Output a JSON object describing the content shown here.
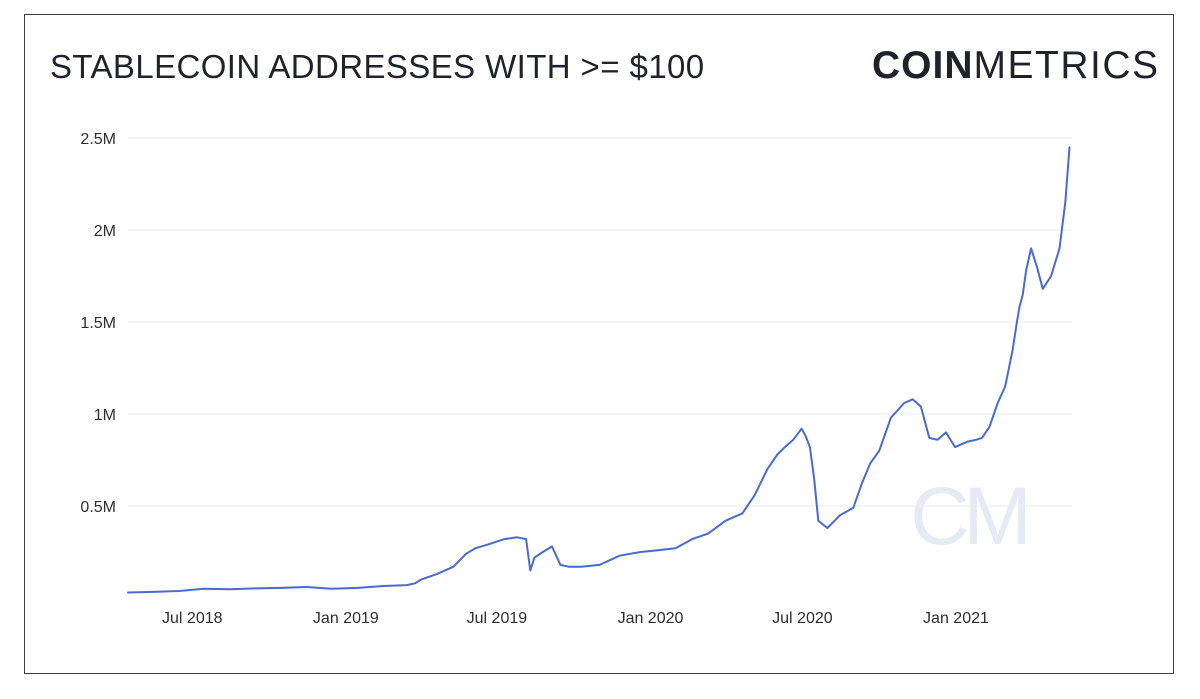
{
  "title": "STABLECOIN ADDRESSES WITH >= $100",
  "logo": {
    "bold": "COIN",
    "light": "METRICS"
  },
  "watermark": "CM",
  "colors": {
    "line": "#4a6ad0",
    "grid": "#ececec",
    "watermark": "#e6eaf5"
  },
  "chart_data": {
    "type": "line",
    "title": "STABLECOIN ADDRESSES WITH >= $100",
    "xlabel": "",
    "ylabel": "",
    "grid": true,
    "legend": "none",
    "xlim": [
      "2018-04-15",
      "2021-05-20"
    ],
    "ylim": [
      0,
      2500000
    ],
    "yticks": [
      {
        "value": 500000,
        "label": "0.5M"
      },
      {
        "value": 1000000,
        "label": "1M"
      },
      {
        "value": 1500000,
        "label": "1.5M"
      },
      {
        "value": 2000000,
        "label": "2M"
      },
      {
        "value": 2500000,
        "label": "2.5M"
      }
    ],
    "xticks": [
      {
        "value": "2018-07-01",
        "label": "Jul 2018"
      },
      {
        "value": "2019-01-01",
        "label": "Jan 2019"
      },
      {
        "value": "2019-07-01",
        "label": "Jul 2019"
      },
      {
        "value": "2020-01-01",
        "label": "Jan 2020"
      },
      {
        "value": "2020-07-01",
        "label": "Jul 2020"
      },
      {
        "value": "2021-01-01",
        "label": "Jan 2021"
      }
    ],
    "series": [
      {
        "x": [
          "2018-04-15",
          "2018-05-15",
          "2018-06-15",
          "2018-07-15",
          "2018-08-15",
          "2018-09-15",
          "2018-10-15",
          "2018-11-15",
          "2018-12-15",
          "2019-01-15",
          "2019-02-15",
          "2019-03-15",
          "2019-03-25",
          "2019-04-01",
          "2019-04-20",
          "2019-05-10",
          "2019-05-25",
          "2019-06-05",
          "2019-06-20",
          "2019-07-10",
          "2019-07-25",
          "2019-08-05",
          "2019-08-10",
          "2019-08-15",
          "2019-08-25",
          "2019-09-05",
          "2019-09-15",
          "2019-09-25",
          "2019-10-10",
          "2019-11-01",
          "2019-11-25",
          "2019-12-20",
          "2020-01-10",
          "2020-01-31",
          "2020-02-20",
          "2020-03-10",
          "2020-03-31",
          "2020-04-20",
          "2020-05-05",
          "2020-05-20",
          "2020-06-01",
          "2020-06-10",
          "2020-06-20",
          "2020-06-30",
          "2020-07-05",
          "2020-07-10",
          "2020-07-15",
          "2020-07-20",
          "2020-07-31",
          "2020-08-15",
          "2020-08-31",
          "2020-09-10",
          "2020-09-20",
          "2020-10-01",
          "2020-10-15",
          "2020-10-31",
          "2020-11-10",
          "2020-11-20",
          "2020-11-30",
          "2020-12-10",
          "2020-12-20",
          "2020-12-31",
          "2021-01-15",
          "2021-01-25",
          "2021-02-01",
          "2021-02-10",
          "2021-02-20",
          "2021-03-01",
          "2021-03-10",
          "2021-03-15",
          "2021-03-18",
          "2021-03-22",
          "2021-03-26",
          "2021-04-01",
          "2021-04-08",
          "2021-04-15",
          "2021-04-25",
          "2021-05-05",
          "2021-05-12",
          "2021-05-17"
        ],
        "y": [
          30000,
          33000,
          38000,
          50000,
          48000,
          52000,
          55000,
          60000,
          50000,
          55000,
          65000,
          70000,
          80000,
          100000,
          130000,
          170000,
          240000,
          270000,
          290000,
          320000,
          330000,
          320000,
          150000,
          220000,
          250000,
          280000,
          180000,
          170000,
          170000,
          180000,
          230000,
          250000,
          260000,
          270000,
          320000,
          350000,
          420000,
          460000,
          560000,
          700000,
          780000,
          820000,
          860000,
          920000,
          880000,
          820000,
          650000,
          420000,
          380000,
          450000,
          490000,
          620000,
          730000,
          800000,
          980000,
          1060000,
          1080000,
          1040000,
          870000,
          860000,
          900000,
          820000,
          850000,
          860000,
          870000,
          930000,
          1060000,
          1150000,
          1350000,
          1500000,
          1580000,
          1650000,
          1780000,
          1900000,
          1800000,
          1680000,
          1750000,
          1900000,
          2150000,
          2450000
        ]
      }
    ]
  }
}
